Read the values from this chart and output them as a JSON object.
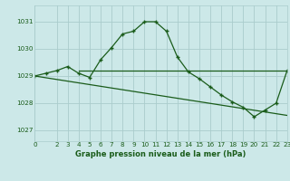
{
  "title": "Graphe pression niveau de la mer (hPa)",
  "bg_color": "#cce8e8",
  "grid_color": "#aacccc",
  "line_color": "#1a5c1a",
  "xlim": [
    0,
    23
  ],
  "ylim": [
    1026.6,
    1031.6
  ],
  "xticks": [
    0,
    2,
    3,
    4,
    5,
    6,
    7,
    8,
    9,
    10,
    11,
    12,
    13,
    14,
    15,
    16,
    17,
    18,
    19,
    20,
    21,
    22,
    23
  ],
  "yticks": [
    1027,
    1028,
    1029,
    1030,
    1031
  ],
  "main_x": [
    0,
    1,
    2,
    3,
    4,
    5,
    6,
    7,
    8,
    9,
    10,
    11,
    12,
    13,
    14,
    15,
    16,
    17,
    18,
    19,
    20,
    21,
    22,
    23
  ],
  "main_y": [
    1029.0,
    1029.1,
    1029.2,
    1029.35,
    1029.1,
    1028.95,
    1029.6,
    1030.05,
    1030.55,
    1030.65,
    1031.0,
    1031.0,
    1030.65,
    1029.7,
    1029.15,
    1028.9,
    1028.6,
    1028.3,
    1028.05,
    1027.85,
    1027.5,
    1027.75,
    1028.0,
    1029.2
  ],
  "decline_x": [
    0,
    23
  ],
  "decline_y": [
    1029.0,
    1027.55
  ],
  "flat_x": [
    4,
    9,
    14,
    19,
    23
  ],
  "flat_y": [
    1029.2,
    1029.2,
    1029.2,
    1029.2,
    1029.2
  ]
}
